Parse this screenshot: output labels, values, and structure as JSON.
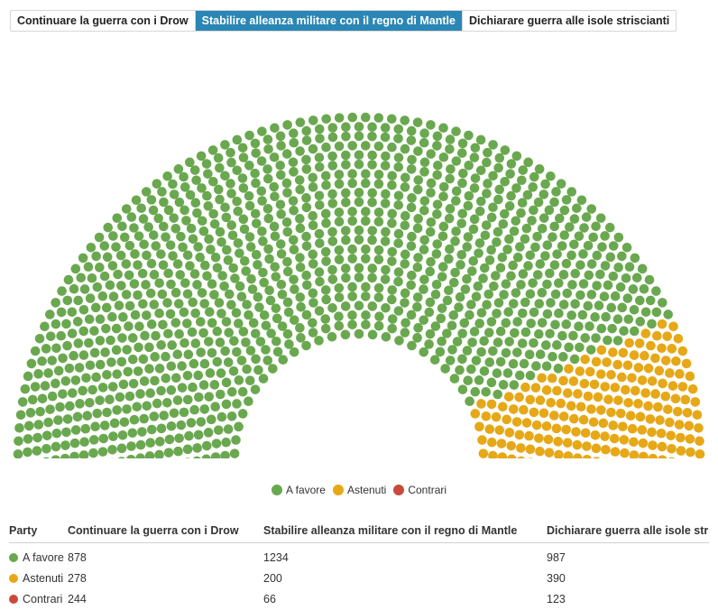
{
  "tabs": [
    {
      "label": "Continuare la guerra con i Drow",
      "active": false
    },
    {
      "label": "Stabilire alleanza militare con il regno di Mantle",
      "active": true
    },
    {
      "label": "Dichiarare guerra alle isole striscianti",
      "active": false
    }
  ],
  "chart_data": {
    "type": "parliament",
    "title": "",
    "active_motion": "Stabilire alleanza militare con il regno di Mantle",
    "series": [
      {
        "name": "A favore",
        "color": "#6aa84f",
        "values": [
          878,
          1234,
          987
        ]
      },
      {
        "name": "Astenuti",
        "color": "#e6a817",
        "values": [
          278,
          200,
          390
        ]
      },
      {
        "name": "Contrari",
        "color": "#c94a3b",
        "values": [
          244,
          66,
          123
        ]
      }
    ],
    "categories": [
      "Continuare la guerra con i Drow",
      "Stabilire alleanza militare con il regno di Mantle",
      "Dichiarare guerra alle isole striscianti"
    ],
    "legend_position": "bottom-center"
  },
  "legend": [
    {
      "label": "A favore",
      "color": "#6aa84f"
    },
    {
      "label": "Astenuti",
      "color": "#e6a817"
    },
    {
      "label": "Contrari",
      "color": "#c94a3b"
    }
  ],
  "table": {
    "headers": [
      "Party",
      "Continuare la guerra con i Drow",
      "Stabilire alleanza militare con il regno di Mantle",
      "Dichiarare guerra alle isole striscianti"
    ],
    "rows": [
      {
        "party": "A favore",
        "color": "#6aa84f",
        "c1": "878",
        "c2": "1234",
        "c3": "987"
      },
      {
        "party": "Astenuti",
        "color": "#e6a817",
        "c1": "278",
        "c2": "200",
        "c3": "390"
      },
      {
        "party": "Contrari",
        "color": "#c94a3b",
        "c1": "244",
        "c2": "66",
        "c3": "123"
      }
    ]
  }
}
